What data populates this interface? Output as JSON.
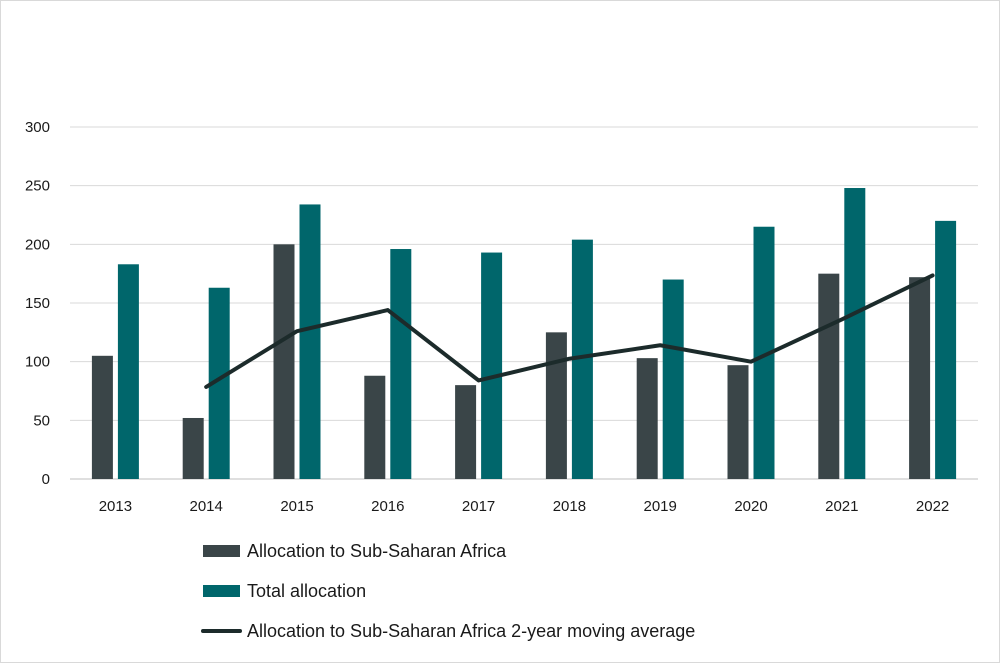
{
  "chart_data": {
    "type": "bar",
    "categories": [
      "2013",
      "2014",
      "2015",
      "2016",
      "2017",
      "2018",
      "2019",
      "2020",
      "2021",
      "2022"
    ],
    "series": [
      {
        "name": "Allocation to Sub-Saharan Africa",
        "kind": "bar",
        "color": "#3a4548",
        "values": [
          105,
          52,
          200,
          88,
          80,
          125,
          103,
          97,
          175,
          172
        ]
      },
      {
        "name": "Total allocation",
        "kind": "bar",
        "color": "#00666b",
        "values": [
          183,
          163,
          234,
          196,
          193,
          204,
          170,
          215,
          248,
          220
        ]
      },
      {
        "name": "Allocation to Sub-Saharan Africa 2-year moving average",
        "kind": "line",
        "color": "#1c2b2b",
        "values": [
          null,
          78.5,
          126,
          144,
          84,
          102.5,
          114,
          100,
          136,
          173.5
        ]
      }
    ],
    "ylim": [
      0,
      300
    ],
    "yticks": [
      0,
      50,
      100,
      150,
      200,
      250,
      300
    ],
    "grid": true,
    "legend_position": "bottom",
    "title": "",
    "xlabel": "",
    "ylabel": ""
  }
}
